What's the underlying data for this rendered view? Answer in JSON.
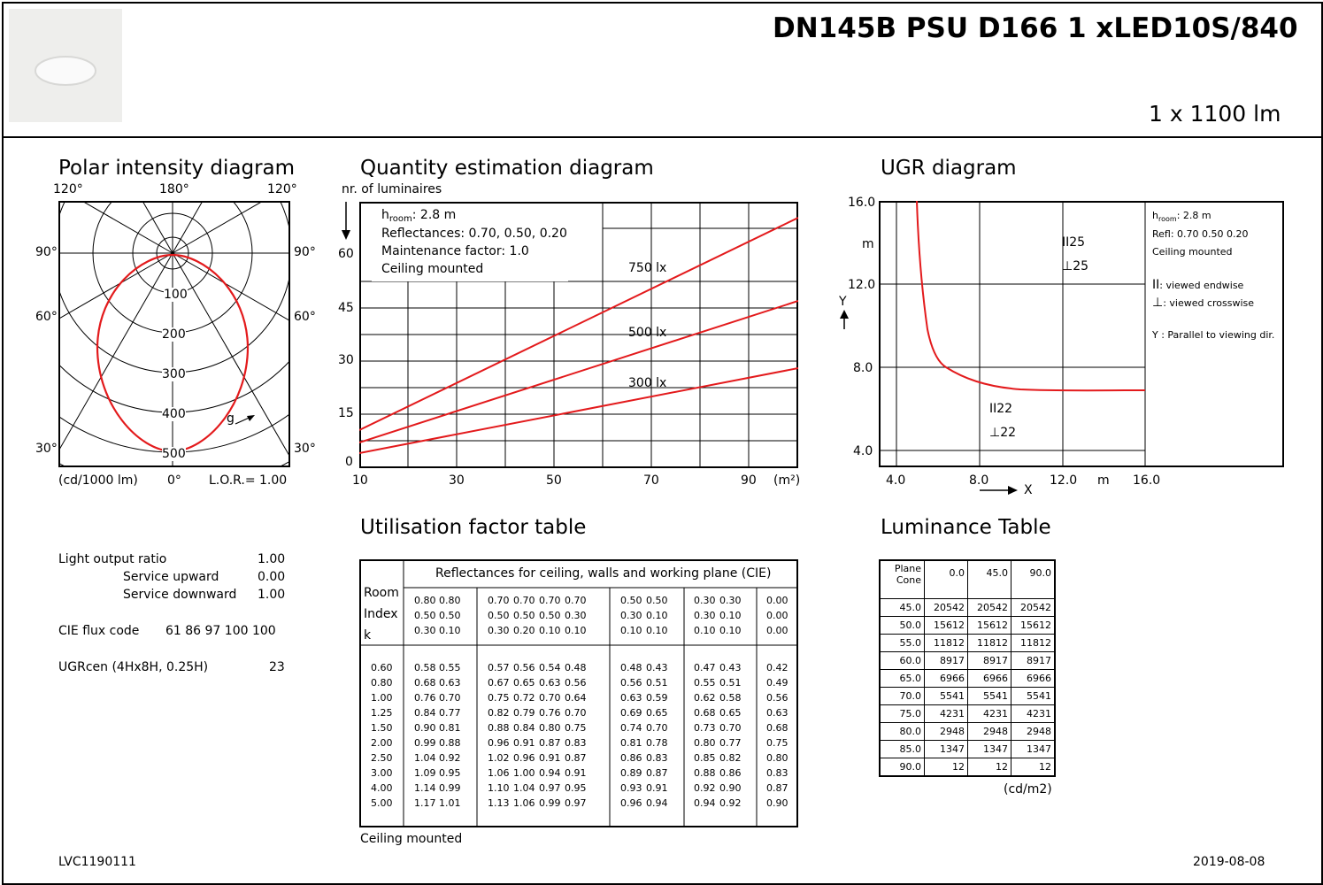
{
  "header": {
    "title": "DN145B PSU D166 1 xLED10S/840",
    "flux": "1 x 1100 lm",
    "product_image": "downlight-photo"
  },
  "polar": {
    "title": "Polar intensity diagram",
    "angle_top_left": "120°",
    "angle_top_center": "180°",
    "angle_top_right": "120°",
    "angle_90_left": "90°",
    "angle_90_right": "90°",
    "angle_60_left": "60°",
    "angle_60_right": "60°",
    "angle_30_left": "30°",
    "angle_30_right": "30°",
    "ring_labels": [
      "100",
      "200",
      "300",
      "400",
      "500"
    ],
    "curve_label": "g",
    "unit": "(cd/1000 lm)",
    "angle_bottom": "0°",
    "lor": "L.O.R.= 1.00"
  },
  "quantity": {
    "title": "Quantity estimation diagram",
    "ylabel": "nr. of luminaires",
    "yticks": [
      "60",
      "45",
      "30",
      "15",
      "0"
    ],
    "xticks": [
      "10",
      "30",
      "50",
      "70",
      "90"
    ],
    "xunit": "(m²)",
    "info": [
      "hroom: 2.8 m",
      "Reflectances: 0.70, 0.50, 0.20",
      "Maintenance factor: 1.0",
      "Ceiling mounted"
    ],
    "lines": [
      {
        "name": "750 lx",
        "x": [
          10,
          100
        ],
        "y": [
          10.5,
          70.5
        ]
      },
      {
        "name": "500 lx",
        "x": [
          10,
          100
        ],
        "y": [
          7,
          47
        ]
      },
      {
        "name": "300 lx",
        "x": [
          10,
          100
        ],
        "y": [
          4,
          28
        ]
      }
    ],
    "color": "#e31a1c"
  },
  "ugr": {
    "title": "UGR diagram",
    "yticks": [
      "16.0",
      "12.0",
      "8.0",
      "4.0"
    ],
    "ylabel_unit": "m",
    "ylabel": "Y",
    "xticks": [
      "4.0",
      "8.0",
      "12.0",
      "16.0"
    ],
    "xlabel_unit": "m",
    "xlabel": "X",
    "upper_endwise": "25",
    "upper_crosswise": "25",
    "lower_endwise": "22",
    "lower_crosswise": "22",
    "legend": {
      "hroom": "hroom: 2.8 m",
      "refl": "Refl: 0.70 0.50 0.20",
      "mount": "Ceiling mounted",
      "endwise": ": viewed endwise",
      "crosswise": ": viewed crosswise",
      "parallel": "Y  : Parallel to viewing dir."
    }
  },
  "summary": {
    "lor_label": "Light output ratio",
    "lor_value": "1.00",
    "up_label": "Service upward",
    "up_value": "0.00",
    "down_label": "Service downward",
    "down_value": "1.00",
    "cie_label": "CIE flux code",
    "cie_value": "61 86 97 100 100",
    "ugr_label": "UGRcen (4Hx8H, 0.25H)",
    "ugr_value": "23"
  },
  "utilisation": {
    "title": "Utilisation factor table",
    "header": "Reflectances for ceiling, walls and working plane (CIE)",
    "room_index_label": [
      "Room",
      "Index",
      "k"
    ],
    "groups": [
      {
        "ceiling": [
          "0.80",
          "0.80"
        ],
        "walls": [
          "0.50",
          "0.50"
        ],
        "floor": [
          "0.30",
          "0.10"
        ]
      },
      {
        "ceiling": [
          "0.70",
          "0.70",
          "0.70",
          "0.70"
        ],
        "walls": [
          "0.50",
          "0.50",
          "0.50",
          "0.30"
        ],
        "floor": [
          "0.30",
          "0.20",
          "0.10",
          "0.10"
        ]
      },
      {
        "ceiling": [
          "0.50",
          "0.50"
        ],
        "walls": [
          "0.30",
          "0.10"
        ],
        "floor": [
          "0.10",
          "0.10"
        ]
      },
      {
        "ceiling": [
          "0.30",
          "0.30"
        ],
        "walls": [
          "0.30",
          "0.10"
        ],
        "floor": [
          "0.10",
          "0.10"
        ]
      },
      {
        "ceiling": [
          "0.00"
        ],
        "walls": [
          "0.00"
        ],
        "floor": [
          "0.00"
        ]
      }
    ],
    "rows": [
      {
        "k": "0.60",
        "v": [
          "0.58",
          "0.55",
          "0.57",
          "0.56",
          "0.54",
          "0.48",
          "0.48",
          "0.43",
          "0.47",
          "0.43",
          "0.42"
        ]
      },
      {
        "k": "0.80",
        "v": [
          "0.68",
          "0.63",
          "0.67",
          "0.65",
          "0.63",
          "0.56",
          "0.56",
          "0.51",
          "0.55",
          "0.51",
          "0.49"
        ]
      },
      {
        "k": "1.00",
        "v": [
          "0.76",
          "0.70",
          "0.75",
          "0.72",
          "0.70",
          "0.64",
          "0.63",
          "0.59",
          "0.62",
          "0.58",
          "0.56"
        ]
      },
      {
        "k": "1.25",
        "v": [
          "0.84",
          "0.77",
          "0.82",
          "0.79",
          "0.76",
          "0.70",
          "0.69",
          "0.65",
          "0.68",
          "0.65",
          "0.63"
        ]
      },
      {
        "k": "1.50",
        "v": [
          "0.90",
          "0.81",
          "0.88",
          "0.84",
          "0.80",
          "0.75",
          "0.74",
          "0.70",
          "0.73",
          "0.70",
          "0.68"
        ]
      },
      {
        "k": "2.00",
        "v": [
          "0.99",
          "0.88",
          "0.96",
          "0.91",
          "0.87",
          "0.83",
          "0.81",
          "0.78",
          "0.80",
          "0.77",
          "0.75"
        ]
      },
      {
        "k": "2.50",
        "v": [
          "1.04",
          "0.92",
          "1.02",
          "0.96",
          "0.91",
          "0.87",
          "0.86",
          "0.83",
          "0.85",
          "0.82",
          "0.80"
        ]
      },
      {
        "k": "3.00",
        "v": [
          "1.09",
          "0.95",
          "1.06",
          "1.00",
          "0.94",
          "0.91",
          "0.89",
          "0.87",
          "0.88",
          "0.86",
          "0.83"
        ]
      },
      {
        "k": "4.00",
        "v": [
          "1.14",
          "0.99",
          "1.10",
          "1.04",
          "0.97",
          "0.95",
          "0.93",
          "0.91",
          "0.92",
          "0.90",
          "0.87"
        ]
      },
      {
        "k": "5.00",
        "v": [
          "1.17",
          "1.01",
          "1.13",
          "1.06",
          "0.99",
          "0.97",
          "0.96",
          "0.94",
          "0.94",
          "0.92",
          "0.90"
        ]
      }
    ],
    "footer": "Ceiling mounted"
  },
  "luminance": {
    "title": "Luminance Table",
    "corner_top": "Plane",
    "corner_bottom": "Cone",
    "columns": [
      "0.0",
      "45.0",
      "90.0"
    ],
    "rows": [
      {
        "cone": "45.0",
        "v": [
          "20542",
          "20542",
          "20542"
        ]
      },
      {
        "cone": "50.0",
        "v": [
          "15612",
          "15612",
          "15612"
        ]
      },
      {
        "cone": "55.0",
        "v": [
          "11812",
          "11812",
          "11812"
        ]
      },
      {
        "cone": "60.0",
        "v": [
          "8917",
          "8917",
          "8917"
        ]
      },
      {
        "cone": "65.0",
        "v": [
          "6966",
          "6966",
          "6966"
        ]
      },
      {
        "cone": "70.0",
        "v": [
          "5541",
          "5541",
          "5541"
        ]
      },
      {
        "cone": "75.0",
        "v": [
          "4231",
          "4231",
          "4231"
        ]
      },
      {
        "cone": "80.0",
        "v": [
          "2948",
          "2948",
          "2948"
        ]
      },
      {
        "cone": "85.0",
        "v": [
          "1347",
          "1347",
          "1347"
        ]
      },
      {
        "cone": "90.0",
        "v": [
          "12",
          "12",
          "12"
        ]
      }
    ],
    "unit": "(cd/m2)"
  },
  "footer": {
    "doc_id": "LVC1190111",
    "date": "2019-08-08"
  }
}
